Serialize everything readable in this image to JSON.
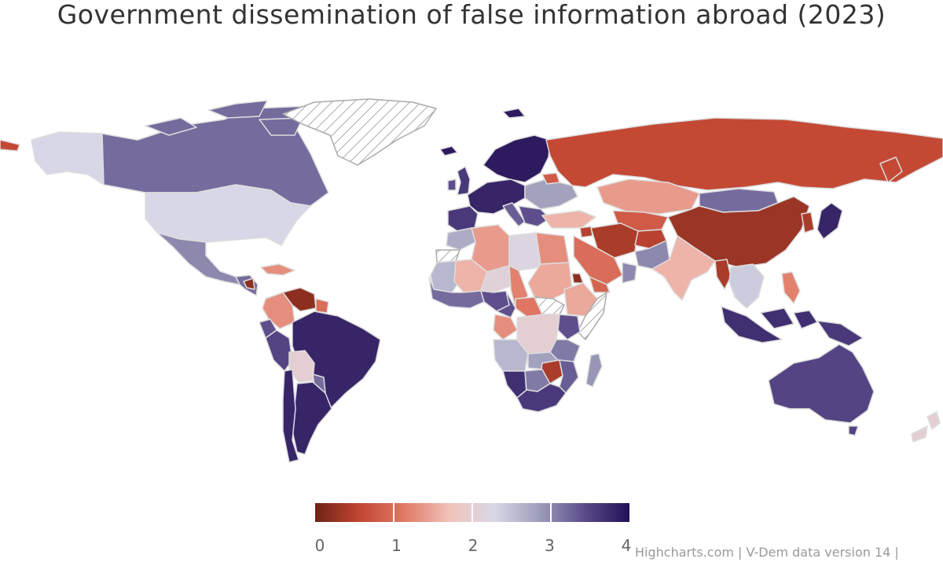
{
  "title": "Government dissemination of false information abroad (2023)",
  "credits": "Highcharts.com | V-Dem data version 14 |",
  "legend": {
    "min": 0,
    "max": 4,
    "ticks": [
      "0",
      "1",
      "2",
      "3",
      "4"
    ],
    "stops": [
      "#6e2316",
      "#c34632",
      "#e07a66",
      "#f1c3ba",
      "#d8d8e8",
      "#9c9cba",
      "#5b4b8a",
      "#231056"
    ]
  },
  "colors": {
    "no_data_stroke": "#aaaaaa",
    "border": "#dddddd"
  },
  "chart_data": {
    "type": "map",
    "metric": "Government dissemination of false information abroad",
    "year": 2023,
    "color_axis": {
      "min": 0,
      "max": 4
    },
    "no_data": [
      "Greenland",
      "Western Sahara",
      "South Sudan",
      "Somalia"
    ],
    "regions": [
      {
        "name": "Canada",
        "value": 3.2
      },
      {
        "name": "Alaska",
        "value": 2.3
      },
      {
        "name": "United States",
        "value": 2.3
      },
      {
        "name": "Mexico",
        "value": 3.0
      },
      {
        "name": "Central America",
        "value": 3.2
      },
      {
        "name": "Nicaragua",
        "value": 0.2
      },
      {
        "name": "Cuba",
        "value": 1.3
      },
      {
        "name": "Colombia",
        "value": 1.3
      },
      {
        "name": "Venezuela",
        "value": 0.2
      },
      {
        "name": "Guyana",
        "value": 1.0
      },
      {
        "name": "Ecuador",
        "value": 3.4
      },
      {
        "name": "Peru",
        "value": 3.5
      },
      {
        "name": "Brazil",
        "value": 3.8
      },
      {
        "name": "Bolivia",
        "value": 2.0
      },
      {
        "name": "Paraguay",
        "value": 3.2
      },
      {
        "name": "Argentina",
        "value": 3.8
      },
      {
        "name": "Chile",
        "value": 3.8
      },
      {
        "name": "Russia",
        "value": 0.6
      },
      {
        "name": "Kazakhstan",
        "value": 1.4
      },
      {
        "name": "Mongolia",
        "value": 3.2
      },
      {
        "name": "China",
        "value": 0.3
      },
      {
        "name": "Central Asia",
        "value": 0.8
      },
      {
        "name": "Iran",
        "value": 0.4
      },
      {
        "name": "Afghanistan",
        "value": 0.5
      },
      {
        "name": "Pakistan",
        "value": 3.0
      },
      {
        "name": "India",
        "value": 1.6
      },
      {
        "name": "Myanmar",
        "value": 0.4
      },
      {
        "name": "Southeast Asia",
        "value": 2.4
      },
      {
        "name": "Indonesia",
        "value": 3.7
      },
      {
        "name": "Papua New Guinea",
        "value": 3.6
      },
      {
        "name": "Philippines",
        "value": 1.2
      },
      {
        "name": "Japan",
        "value": 3.8
      },
      {
        "name": "Korea",
        "value": 0.4
      },
      {
        "name": "Australia",
        "value": 3.5
      },
      {
        "name": "New Zealand",
        "value": 2.0
      },
      {
        "name": "Scandinavia",
        "value": 3.9
      },
      {
        "name": "Western Europe",
        "value": 3.8
      },
      {
        "name": "United Kingdom",
        "value": 3.6
      },
      {
        "name": "Ireland",
        "value": 3.4
      },
      {
        "name": "Iberia",
        "value": 3.6
      },
      {
        "name": "Italy",
        "value": 3.3
      },
      {
        "name": "Eastern Europe",
        "value": 2.8
      },
      {
        "name": "Belarus",
        "value": 0.8
      },
      {
        "name": "Balkans",
        "value": 3.4
      },
      {
        "name": "Turkey",
        "value": 1.6
      },
      {
        "name": "Syria",
        "value": 0.5
      },
      {
        "name": "Saudi Arabia",
        "value": 1.0
      },
      {
        "name": "Yemen",
        "value": 0.9
      },
      {
        "name": "Oman",
        "value": 3.0
      },
      {
        "name": "Morocco",
        "value": 2.7
      },
      {
        "name": "Algeria",
        "value": 1.4
      },
      {
        "name": "Libya",
        "value": 2.2
      },
      {
        "name": "Egypt",
        "value": 1.3
      },
      {
        "name": "Sudan",
        "value": 1.5
      },
      {
        "name": "Ethiopia",
        "value": 1.5
      },
      {
        "name": "Eritrea",
        "value": 0.2
      },
      {
        "name": "Mauritania",
        "value": 2.6
      },
      {
        "name": "Mali",
        "value": 1.6
      },
      {
        "name": "Niger",
        "value": 2.1
      },
      {
        "name": "Chad",
        "value": 1.2
      },
      {
        "name": "West Africa coast",
        "value": 3.2
      },
      {
        "name": "Nigeria",
        "value": 3.4
      },
      {
        "name": "Central African Republic",
        "value": 1.1
      },
      {
        "name": "Cameroon",
        "value": 3.4
      },
      {
        "name": "Gabon / Congo",
        "value": 1.3
      },
      {
        "name": "DR Congo",
        "value": 2.0
      },
      {
        "name": "Kenya",
        "value": 3.4
      },
      {
        "name": "Tanzania",
        "value": 3.1
      },
      {
        "name": "Angola",
        "value": 2.6
      },
      {
        "name": "Zambia",
        "value": 2.8
      },
      {
        "name": "Zimbabwe",
        "value": 0.4
      },
      {
        "name": "Namibia",
        "value": 3.7
      },
      {
        "name": "Botswana",
        "value": 3.1
      },
      {
        "name": "South Africa",
        "value": 3.6
      },
      {
        "name": "Mozambique",
        "value": 3.3
      },
      {
        "name": "Madagascar",
        "value": 2.9
      },
      {
        "name": "Chukotka",
        "value": 0.6
      }
    ]
  }
}
